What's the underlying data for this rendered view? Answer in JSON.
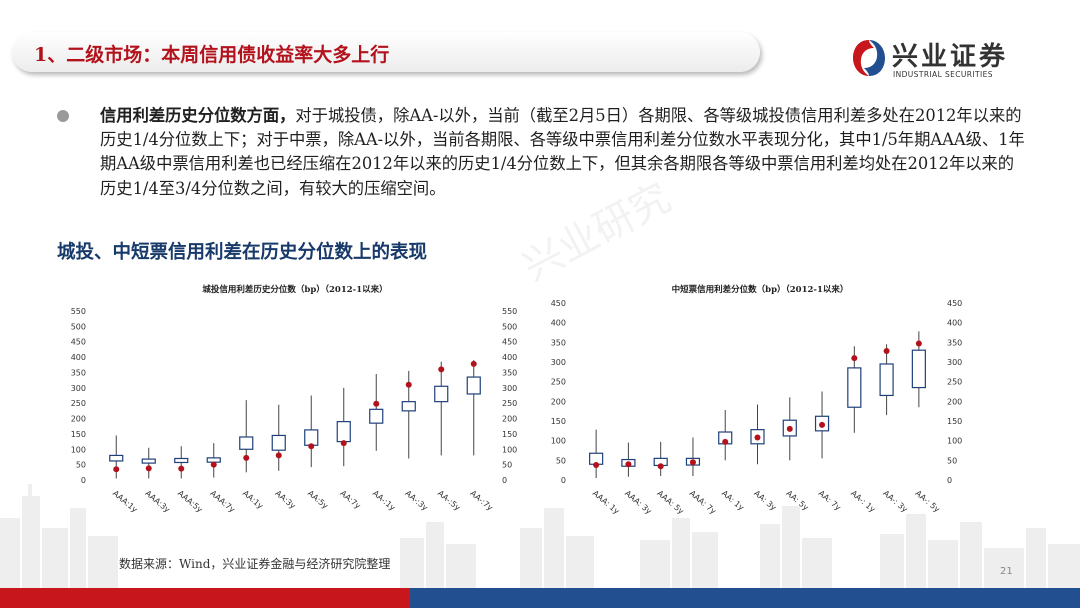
{
  "header": {
    "title": "1、二级市场：本周信用债收益率大多上行",
    "logo_cn": "兴业证券",
    "logo_en": "INDUSTRIAL SECURITIES"
  },
  "bullet": {
    "bold": "信用利差历史分位数方面，",
    "text": "对于城投债，除AA-以外，当前（截至2月5日）各期限、各等级城投债信用利差多处在2012年以来的历史1/4分位数上下；对于中票，除AA-以外，当前各期限、各等级中票信用利差分位数水平表现分化，其中1/5年期AAA级、1年期AA级中票信用利差也已经压缩在2012年以来的历史1/4分位数上下，但其余各期限各等级中票信用利差均处在2012年以来的历史1/4至3/4分位数之间，有较大的压缩空间。"
  },
  "section_title": "城投、中短票信用利差在历史分位数上的表现",
  "source": "数据来源：Wind，兴业证券金融与经济研究院整理",
  "page_number": "21",
  "watermark": "兴业研究",
  "colors": {
    "title_red": "#b3121c",
    "heading_blue": "#173a6a",
    "box_edge": "#1f3f7a",
    "current_dot": "#b3121c",
    "strip_red": "#c8161d",
    "strip_blue": "#214f90"
  },
  "chart_data": [
    {
      "type": "box",
      "title": "城投信用利差历史分位数（bp）（2012-1以来）",
      "categories": [
        "AAA:1y",
        "AAA:3y",
        "AAA:5y",
        "AAA:7y",
        "AA:1y",
        "AA:3y",
        "AA:5y",
        "AA:7y",
        "AA-:1y",
        "AA-:3y",
        "AA-:5y",
        "AA-:7y"
      ],
      "ylim": [
        0,
        550
      ],
      "yticks": [
        0,
        50,
        100,
        150,
        200,
        250,
        300,
        350,
        400,
        450,
        500,
        550
      ],
      "dual_axis": true,
      "series": [
        {
          "min": 5,
          "q1": 62,
          "q3": 80,
          "max": 145,
          "current": 35
        },
        {
          "min": 5,
          "q1": 55,
          "q3": 68,
          "max": 105,
          "current": 38
        },
        {
          "min": 5,
          "q1": 57,
          "q3": 70,
          "max": 110,
          "current": 37
        },
        {
          "min": 8,
          "q1": 58,
          "q3": 72,
          "max": 120,
          "current": 50
        },
        {
          "min": 25,
          "q1": 100,
          "q3": 140,
          "max": 260,
          "current": 72
        },
        {
          "min": 30,
          "q1": 97,
          "q3": 145,
          "max": 245,
          "current": 80
        },
        {
          "min": 42,
          "q1": 113,
          "q3": 163,
          "max": 275,
          "current": 110
        },
        {
          "min": 45,
          "q1": 125,
          "q3": 190,
          "max": 300,
          "current": 120
        },
        {
          "min": 95,
          "q1": 185,
          "q3": 230,
          "max": 345,
          "current": 248
        },
        {
          "min": 70,
          "q1": 225,
          "q3": 255,
          "max": 355,
          "current": 310
        },
        {
          "min": 80,
          "q1": 255,
          "q3": 305,
          "max": 385,
          "current": 360
        },
        {
          "min": 80,
          "q1": 280,
          "q3": 335,
          "max": 390,
          "current": 378
        }
      ]
    },
    {
      "type": "box",
      "title": "中短票信用利差分位数（bp）（2012-1以来）",
      "categories": [
        "AAA: 1y",
        "AAA: 3y",
        "AAA: 5y",
        "AAA: 7y",
        "AA: 1y",
        "AA: 3y",
        "AA: 5y",
        "AA: 7y",
        "AA-: 1y",
        "AA-: 3y",
        "AA-: 5y"
      ],
      "ylim": [
        0,
        450
      ],
      "yticks": [
        0,
        50,
        100,
        150,
        200,
        250,
        300,
        350,
        400,
        450
      ],
      "dual_axis": true,
      "series": [
        {
          "min": 5,
          "q1": 40,
          "q3": 68,
          "max": 128,
          "current": 38
        },
        {
          "min": 8,
          "q1": 35,
          "q3": 52,
          "max": 95,
          "current": 40
        },
        {
          "min": 10,
          "q1": 37,
          "q3": 55,
          "max": 97,
          "current": 35
        },
        {
          "min": 10,
          "q1": 38,
          "q3": 55,
          "max": 108,
          "current": 45
        },
        {
          "min": 50,
          "q1": 92,
          "q3": 122,
          "max": 178,
          "current": 97
        },
        {
          "min": 40,
          "q1": 92,
          "q3": 128,
          "max": 192,
          "current": 108
        },
        {
          "min": 50,
          "q1": 112,
          "q3": 152,
          "max": 210,
          "current": 130
        },
        {
          "min": 55,
          "q1": 125,
          "q3": 162,
          "max": 225,
          "current": 140
        },
        {
          "min": 120,
          "q1": 185,
          "q3": 285,
          "max": 340,
          "current": 310
        },
        {
          "min": 165,
          "q1": 215,
          "q3": 295,
          "max": 345,
          "current": 328
        },
        {
          "min": 185,
          "q1": 235,
          "q3": 330,
          "max": 378,
          "current": 347
        }
      ]
    }
  ]
}
